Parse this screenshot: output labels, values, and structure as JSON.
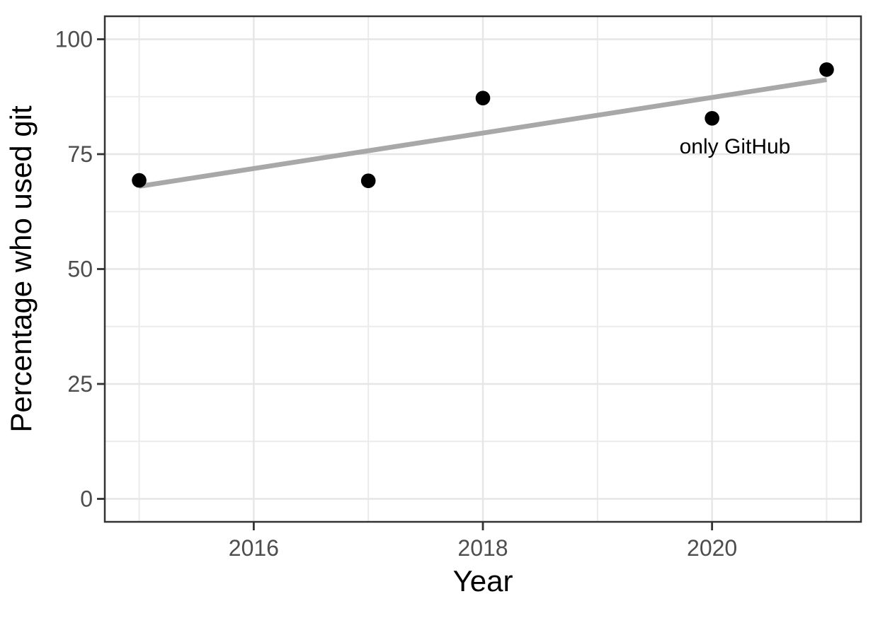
{
  "chart_data": {
    "type": "scatter",
    "title": "",
    "xlabel": "Year",
    "ylabel": "Percentage who used git",
    "x": [
      2015,
      2017,
      2018,
      2020,
      2021
    ],
    "values": [
      69.3,
      69.2,
      87.2,
      82.8,
      93.4
    ],
    "series_name": "Percentage who used git",
    "trend": {
      "type": "linear",
      "x": [
        2015,
        2021
      ],
      "y": [
        68.0,
        91.2
      ]
    },
    "annotation": {
      "text": "only GitHub",
      "x": 2020.2,
      "y": 76.7
    },
    "xlim": [
      2014.7,
      2021.3
    ],
    "ylim": [
      -5,
      105
    ],
    "x_ticks": [
      2016,
      2018,
      2020
    ],
    "x_minor_ticks": [
      2015,
      2017,
      2019,
      2021
    ],
    "y_ticks": [
      0,
      25,
      50,
      75,
      100
    ],
    "y_minor_ticks": [
      12.5,
      37.5,
      62.5,
      87.5
    ],
    "grid": true,
    "legend": "none",
    "colors": {
      "point": "#000000",
      "trend_line": "#a8a8a8",
      "grid_major": "#e6e6e6",
      "grid_minor": "#ebebeb",
      "panel_border": "#333333",
      "tick_mark": "#333333",
      "tick_label": "#4d4d4d",
      "axis_title": "#000000",
      "background": "#ffffff"
    }
  }
}
